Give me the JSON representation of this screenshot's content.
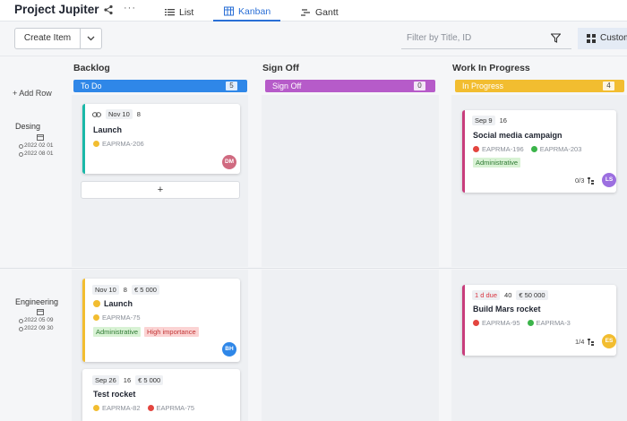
{
  "header": {
    "project_title": "Project Jupiter",
    "more": "···",
    "tabs": [
      {
        "label": "List",
        "icon": "list-icon"
      },
      {
        "label": "Kanban",
        "icon": "kanban-icon",
        "active": true
      },
      {
        "label": "Gantt",
        "icon": "gantt-icon"
      }
    ]
  },
  "toolbar": {
    "create_label": "Create Item",
    "filter_placeholder": "Filter by Title, ID",
    "custom_label": "Custom"
  },
  "colors": {
    "blue": "#2f87e8",
    "purple": "#b65bc9",
    "yellow": "#f2bd30",
    "teal": "#1ab8a8",
    "pink": "#c83d7c"
  },
  "columns": [
    {
      "title": "Backlog",
      "status": "To Do",
      "count": "5"
    },
    {
      "title": "Sign Off",
      "status": "Sign Off",
      "count": "0"
    },
    {
      "title": "Work In Progress",
      "status": "In Progress",
      "count": "4"
    }
  ],
  "rows": {
    "add_row": "+ Add Row",
    "items": [
      {
        "name": "Desing",
        "start": "2022 02 01",
        "end": "2022 08 01"
      },
      {
        "name": "Engineering",
        "start": "2022 05 09",
        "end": "2022 09 30"
      }
    ]
  },
  "cards": {
    "c1": {
      "date": "Nov 10",
      "num": "8",
      "title": "Launch",
      "ref1": "EAPRMA-206",
      "avatar": "DM"
    },
    "c2": {
      "date": "Sep 9",
      "num": "16",
      "title": "Social media campaign",
      "ref1": "EAPRMA-196",
      "ref2": "EAPRMA-203",
      "tag1": "Administrative",
      "subtasks": "0/3",
      "avatar": "LS"
    },
    "c3": {
      "date": "Nov 10",
      "num": "8",
      "cost": "€ 5 000",
      "title": "Launch",
      "ref1": "EAPRMA-75",
      "tag1": "Administrative",
      "tag2": "High importance",
      "avatar": "BH"
    },
    "c4": {
      "date": "1 d due",
      "num": "40",
      "cost": "€ 50 000",
      "title": "Build Mars rocket",
      "ref1": "EAPRMA-95",
      "ref2": "EAPRMA-3",
      "subtasks": "1/4",
      "avatar": "ES"
    },
    "c5": {
      "date": "Sep 26",
      "num": "16",
      "cost": "€ 5 000",
      "title": "Test rocket",
      "ref1": "EAPRMA-82",
      "ref2": "EAPRMA-75"
    }
  },
  "add_card": "+"
}
